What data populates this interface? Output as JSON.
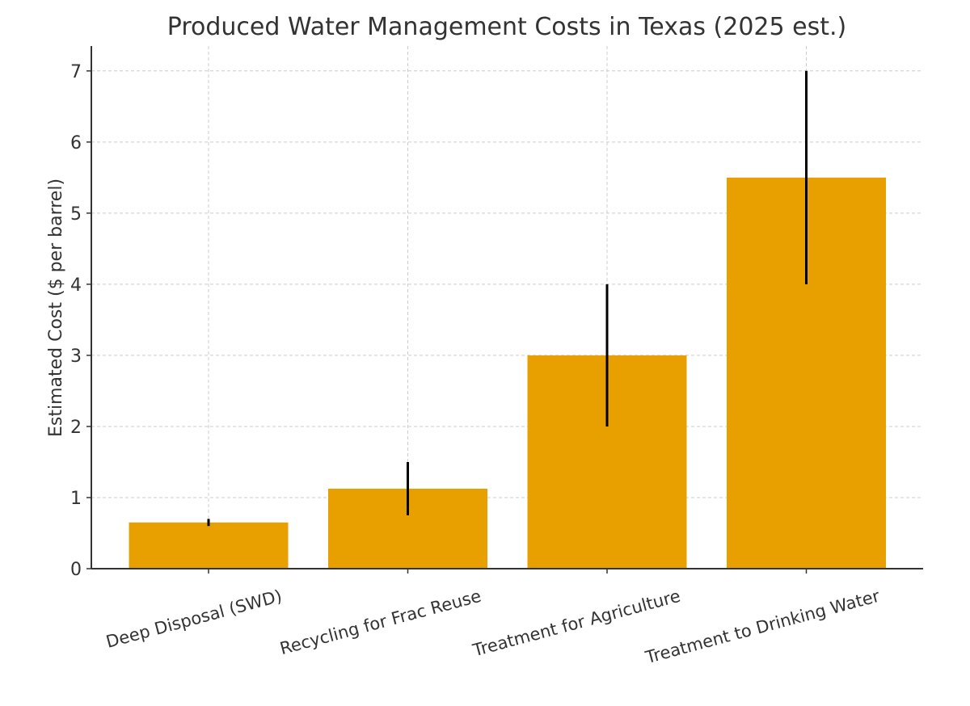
{
  "chart_data": {
    "type": "bar",
    "title": "Produced Water Management Costs in Texas (2025 est.)",
    "xlabel": "",
    "ylabel": "Estimated Cost ($ per barrel)",
    "categories": [
      "Deep Disposal (SWD)",
      "Recycling for Frac Reuse",
      "Treatment for Agriculture",
      "Treatment to Drinking Water"
    ],
    "values": [
      0.65,
      1.125,
      3.0,
      5.5
    ],
    "error_low": [
      0.6,
      0.75,
      2.0,
      4.0
    ],
    "error_high": [
      0.7,
      1.5,
      4.0,
      7.0
    ],
    "ylim": [
      0,
      7.35
    ],
    "yticks": [
      0,
      1,
      2,
      3,
      4,
      5,
      6,
      7
    ],
    "grid": true,
    "category_label_rotation_deg": -15,
    "bar_color": "#E8A000",
    "error_color": "#000000"
  }
}
